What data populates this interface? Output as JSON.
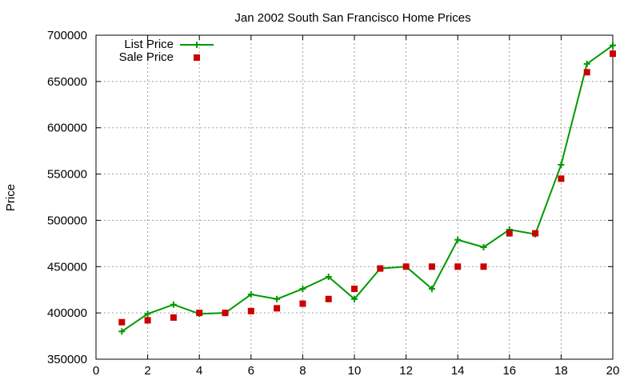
{
  "chart_data": {
    "type": "line",
    "title": "Jan 2002 South San Francisco Home Prices",
    "xlabel": "",
    "ylabel": "Price",
    "xlim": [
      0,
      20
    ],
    "ylim": [
      350000,
      700000
    ],
    "x_ticks": [
      0,
      2,
      4,
      6,
      8,
      10,
      12,
      14,
      16,
      18,
      20
    ],
    "y_ticks": [
      350000,
      400000,
      450000,
      500000,
      550000,
      600000,
      650000,
      700000
    ],
    "grid": true,
    "legend_position": "top-left",
    "series": [
      {
        "name": "List Price",
        "style": "line+cross",
        "color": "#009900",
        "x": [
          1,
          2,
          3,
          4,
          5,
          6,
          7,
          8,
          9,
          10,
          11,
          12,
          13,
          14,
          15,
          16,
          17,
          18,
          19,
          20
        ],
        "values": [
          380000,
          399000,
          409000,
          399000,
          400000,
          420000,
          415000,
          426000,
          439000,
          415000,
          448000,
          450000,
          426000,
          479000,
          471000,
          490000,
          485000,
          560000,
          669000,
          689000
        ]
      },
      {
        "name": "Sale Price",
        "style": "square-points",
        "color": "#cc0000",
        "x": [
          1,
          2,
          3,
          4,
          5,
          6,
          7,
          8,
          9,
          10,
          11,
          12,
          13,
          14,
          15,
          16,
          17,
          18,
          19,
          20
        ],
        "values": [
          390000,
          392000,
          395000,
          400000,
          400000,
          402000,
          405000,
          410000,
          415000,
          426000,
          448000,
          450000,
          450000,
          450000,
          450000,
          486000,
          486000,
          545000,
          660000,
          680000
        ]
      }
    ]
  }
}
